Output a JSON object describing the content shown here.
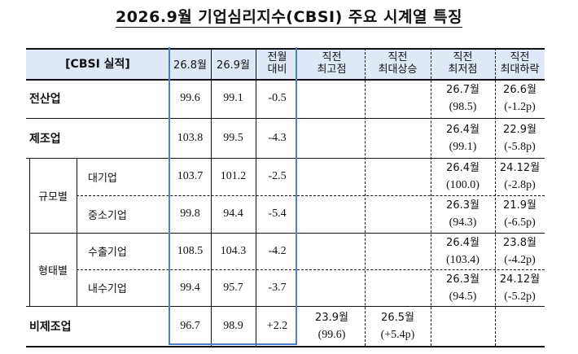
{
  "title": "2026.9월  기업심리지수(CBSI)  주요  시계열  특징",
  "header": {
    "label": "[CBSI 실적]",
    "col_prev_month": "26.8월",
    "col_curr_month": "26.9월",
    "col_mom": [
      "전월",
      "대비"
    ],
    "col_recent_high": [
      "직전",
      "최고점"
    ],
    "col_recent_max_rise": [
      "직전",
      "최대상승"
    ],
    "col_recent_low": [
      "직전",
      "최저점"
    ],
    "col_recent_max_fall": [
      "직전",
      "최대하락"
    ]
  },
  "groups": {
    "size": "규모별",
    "type": "형태별"
  },
  "rows": [
    {
      "label": "전산업",
      "prev": "99.6",
      "curr": "99.1",
      "mom": "-0.5",
      "high_date": "",
      "high_val": "",
      "rise_date": "",
      "rise_val": "",
      "low_date": "26.7월",
      "low_val": "(98.5)",
      "fall_date": "26.6월",
      "fall_val": "(-1.2p)"
    },
    {
      "label": "제조업",
      "prev": "103.8",
      "curr": "99.5",
      "mom": "-4.3",
      "high_date": "",
      "high_val": "",
      "rise_date": "",
      "rise_val": "",
      "low_date": "26.4월",
      "low_val": "(99.1)",
      "fall_date": "22.9월",
      "fall_val": "(-5.8p)"
    },
    {
      "label": "대기업",
      "prev": "103.7",
      "curr": "101.2",
      "mom": "-2.5",
      "high_date": "",
      "high_val": "",
      "rise_date": "",
      "rise_val": "",
      "low_date": "26.4월",
      "low_val": "(100.0)",
      "fall_date": "24.12월",
      "fall_val": "(-2.8p)"
    },
    {
      "label": "중소기업",
      "prev": "99.8",
      "curr": "94.4",
      "mom": "-5.4",
      "high_date": "",
      "high_val": "",
      "rise_date": "",
      "rise_val": "",
      "low_date": "26.3월",
      "low_val": "(94.3)",
      "fall_date": "21.9월",
      "fall_val": "(-6.5p)"
    },
    {
      "label": "수출기업",
      "prev": "108.5",
      "curr": "104.3",
      "mom": "-4.2",
      "high_date": "",
      "high_val": "",
      "rise_date": "",
      "rise_val": "",
      "low_date": "26.4월",
      "low_val": "(103.4)",
      "fall_date": "23.8월",
      "fall_val": "(-4.2p)"
    },
    {
      "label": "내수기업",
      "prev": "99.4",
      "curr": "95.7",
      "mom": "-3.7",
      "high_date": "",
      "high_val": "",
      "rise_date": "",
      "rise_val": "",
      "low_date": "26.3월",
      "low_val": "(94.5)",
      "fall_date": "24.12월",
      "fall_val": "(-5.2p)"
    },
    {
      "label": "비제조업",
      "prev": "96.7",
      "curr": "98.9",
      "mom": "+2.2",
      "high_date": "23.9월",
      "high_val": "(99.6)",
      "rise_date": "26.5월",
      "rise_val": "(+5.4p)",
      "low_date": "",
      "low_val": "",
      "fall_date": "",
      "fall_val": ""
    }
  ],
  "colors": {
    "header_bg": "#dfe8f6",
    "highlight_border": "#4a7fd4",
    "line": "#111111"
  }
}
